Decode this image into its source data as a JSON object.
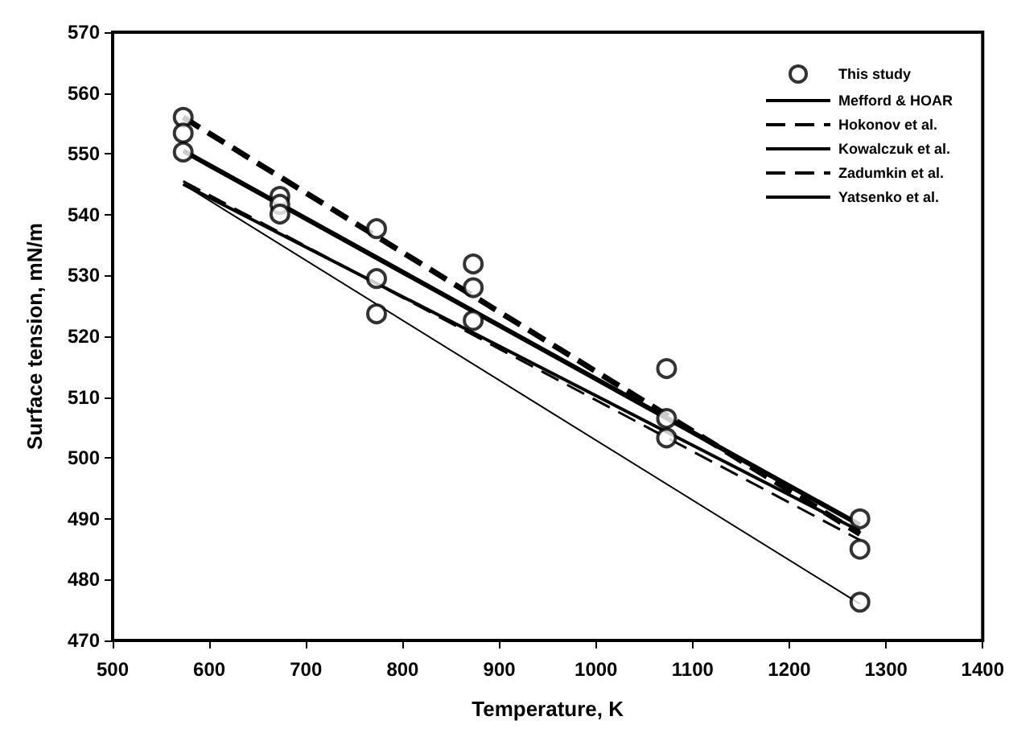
{
  "chart_data": {
    "type": "line",
    "xlabel": "Temperature, K",
    "ylabel": "Surface tension, mN/m",
    "xlim": [
      500,
      1400
    ],
    "xticks": [
      500,
      600,
      700,
      800,
      900,
      1000,
      1100,
      1200,
      1300,
      1400
    ],
    "ylim": [
      470,
      570
    ],
    "yticks": [
      470,
      480,
      490,
      500,
      510,
      520,
      530,
      540,
      550,
      560,
      570
    ],
    "grid": false,
    "legend": "top right",
    "series": [
      {
        "name": "This study",
        "type": "scatter",
        "marker": "circle",
        "color": "#000000",
        "x": [
          573,
          573,
          573,
          673,
          673,
          673,
          773,
          773,
          773,
          873,
          873,
          873,
          1073,
          1073,
          1073,
          1273,
          1273,
          1273
        ],
        "values": [
          556,
          553.4,
          550.3,
          543,
          541.7,
          540.1,
          537.7,
          529.5,
          523.7,
          531.9,
          528,
          522.6,
          514.7,
          506.5,
          503.3,
          490,
          485,
          476.3
        ]
      },
      {
        "name": "Mefford & HOAR",
        "color": "#000000",
        "line_style": "solid",
        "x": [
          573,
          1273
        ],
        "values": [
          545,
          476
        ]
      },
      {
        "name": "Hokonov et al.",
        "color": "#000000",
        "line_style": "dashed",
        "x": [
          573,
          1273
        ],
        "values": [
          545.5,
          486.5
        ]
      },
      {
        "name": "Kowalczuk et al.",
        "color": "#000000",
        "line_style": "solid",
        "x": [
          573,
          1273
        ],
        "values": [
          550.5,
          489
        ]
      },
      {
        "name": "Zadumkin et al.",
        "color": "#000000",
        "line_style": "dashed",
        "x": [
          573,
          1273
        ],
        "values": [
          556,
          487.5
        ]
      },
      {
        "name": "Yatsenko et al.",
        "color": "#000000",
        "line_style": "solid",
        "x": [
          573,
          1273
        ],
        "values": [
          545,
          488
        ]
      }
    ]
  }
}
